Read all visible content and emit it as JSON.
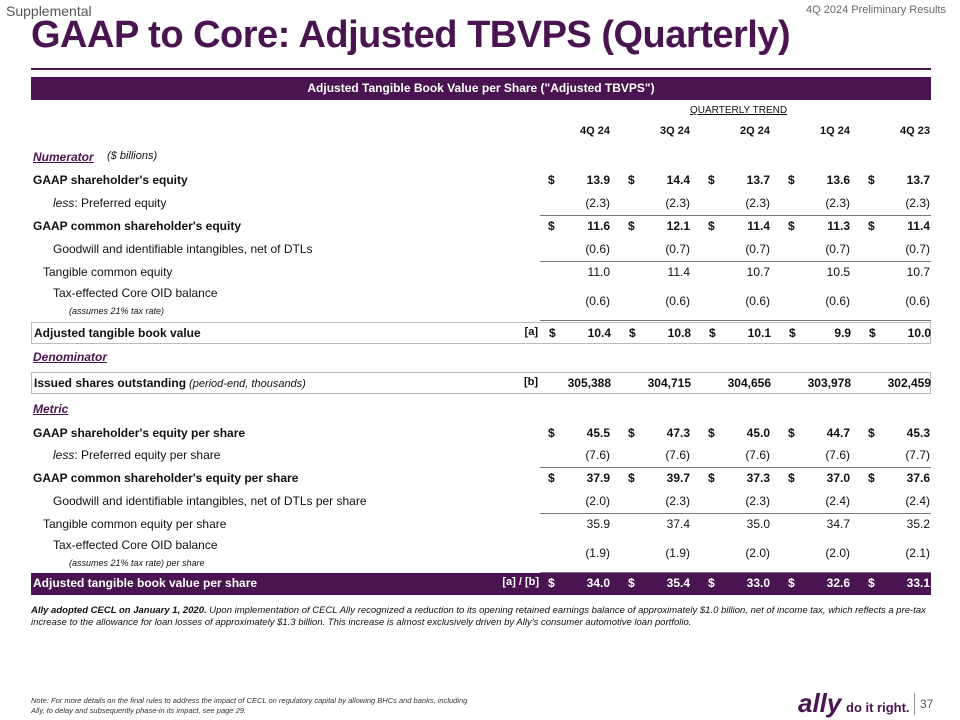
{
  "header": {
    "supplemental": "Supplemental",
    "preliminary": "4Q 2024 Preliminary Results",
    "title": "GAAP to Core: Adjusted TBVPS (Quarterly)"
  },
  "table": {
    "banner": "Adjusted Tangible Book Value per Share (\"Adjusted TBVPS\")",
    "trend_label": "QUARTERLY TREND",
    "columns": [
      "4Q 24",
      "3Q 24",
      "2Q 24",
      "1Q 24",
      "4Q 23"
    ],
    "numerator": {
      "label": "Numerator",
      "unit": "($ billions)"
    },
    "denominator": {
      "label": "Denominator"
    },
    "metric": {
      "label": "Metric"
    },
    "rows": {
      "gaap_se": {
        "label": "GAAP shareholder's equity",
        "values": [
          "13.9",
          "14.4",
          "13.7",
          "13.6",
          "13.7"
        ]
      },
      "pref": {
        "prefix": "less",
        "label": ":  Preferred equity",
        "values": [
          "(2.3)",
          "(2.3)",
          "(2.3)",
          "(2.3)",
          "(2.3)"
        ]
      },
      "gaap_cse": {
        "label": "GAAP common shareholder's equity",
        "values": [
          "11.6",
          "12.1",
          "11.4",
          "11.3",
          "11.4"
        ]
      },
      "goodwill": {
        "label": "Goodwill and identifiable intangibles, net of DTLs",
        "values": [
          "(0.6)",
          "(0.7)",
          "(0.7)",
          "(0.7)",
          "(0.7)"
        ]
      },
      "tce": {
        "label": "Tangible common equity",
        "values": [
          "11.0",
          "11.4",
          "10.7",
          "10.5",
          "10.7"
        ]
      },
      "oid": {
        "label": "Tax-effected Core OID balance",
        "sub": "(assumes 21% tax rate)",
        "values": [
          "(0.6)",
          "(0.6)",
          "(0.6)",
          "(0.6)",
          "(0.6)"
        ]
      },
      "atbv": {
        "label": "Adjusted tangible book value",
        "tag": "[a]",
        "values": [
          "10.4",
          "10.8",
          "10.1",
          "9.9",
          "10.0"
        ]
      },
      "shares": {
        "label": "Issued shares outstanding",
        "sub": "(period-end, thousands)",
        "tag": "[b]",
        "values": [
          "305,388",
          "304,715",
          "304,656",
          "303,978",
          "302,459"
        ]
      },
      "gaap_se_ps": {
        "label": "GAAP shareholder's equity per share",
        "values": [
          "45.5",
          "47.3",
          "45.0",
          "44.7",
          "45.3"
        ]
      },
      "pref_ps": {
        "prefix": "less",
        "label": ":  Preferred equity per share",
        "values": [
          "(7.6)",
          "(7.6)",
          "(7.6)",
          "(7.6)",
          "(7.7)"
        ]
      },
      "gaap_cse_ps": {
        "label": "GAAP common shareholder's equity per share",
        "values": [
          "37.9",
          "39.7",
          "37.3",
          "37.0",
          "37.6"
        ]
      },
      "goodwill_ps": {
        "label": "Goodwill and identifiable intangibles, net of DTLs per share",
        "values": [
          "(2.0)",
          "(2.3)",
          "(2.3)",
          "(2.4)",
          "(2.4)"
        ]
      },
      "tce_ps": {
        "label": "Tangible common equity per share",
        "values": [
          "35.9",
          "37.4",
          "35.0",
          "34.7",
          "35.2"
        ]
      },
      "oid_ps": {
        "label": "Tax-effected Core OID balance",
        "sub": "(assumes 21% tax rate) per share",
        "values": [
          "(1.9)",
          "(1.9)",
          "(2.0)",
          "(2.0)",
          "(2.1)"
        ]
      },
      "atbv_ps": {
        "label": "Adjusted tangible book value per share",
        "tag": "[a] / [b]",
        "values": [
          "34.0",
          "35.4",
          "33.0",
          "32.6",
          "33.1"
        ]
      }
    },
    "dollar_sign": "$"
  },
  "notes": {
    "cecl_bold": "Ally adopted CECL on January 1, 2020.",
    "cecl_text": " Upon implementation of CECL Ally recognized a reduction to its opening retained earnings balance of approximately $1.0 billion, net of income tax, which reflects a pre-tax increase to the allowance for loan losses of approximately $1.3 billion. This increase is almost exclusively driven by Ally's consumer automotive loan portfolio.",
    "footnote": "Note: For more details on the final rules to address the impact of CECL on regulatory capital by allowing BHCs and banks, including Ally, to delay and subsequently phase-in its impact, see page 29."
  },
  "footer": {
    "logo": "ally",
    "slogan": "do it right.",
    "page": "37"
  }
}
